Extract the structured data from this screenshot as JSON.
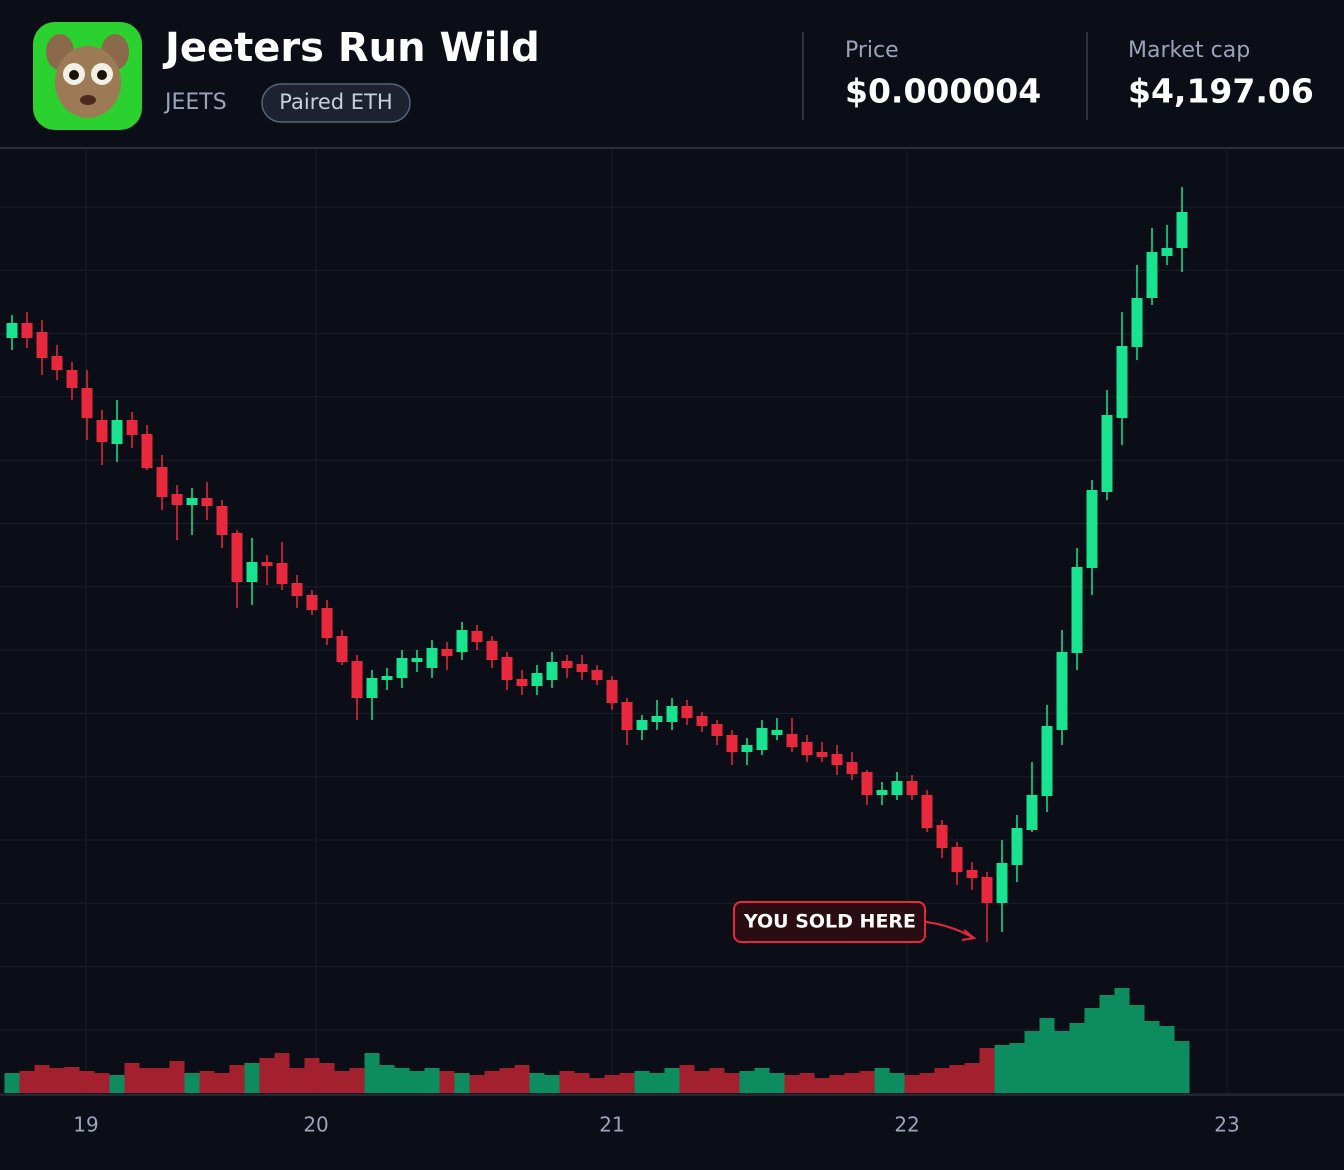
{
  "header": {
    "title": "Jeeters Run Wild",
    "ticker": "JEETS",
    "badge": "Paired ETH",
    "stats": [
      {
        "label": "Price",
        "value": "$0.000004"
      },
      {
        "label": "Market cap",
        "value": "$4,197.06"
      }
    ]
  },
  "chart_data": {
    "type": "candlestick",
    "annotation": "YOU SOLD HERE",
    "up_color": "#19e38f",
    "down_color": "#e8283c",
    "volume_up_color": "#0d8c60",
    "volume_down_color": "#a3212f",
    "x": [
      0,
      1,
      2,
      3,
      4,
      5,
      6,
      7,
      8,
      9,
      10,
      11,
      12,
      13,
      14,
      15,
      16,
      17,
      18,
      19,
      20,
      21,
      22,
      23,
      24,
      25,
      26,
      27,
      28,
      29,
      30,
      31,
      32,
      33,
      34,
      35,
      36,
      37,
      38,
      39,
      40,
      41,
      42,
      43,
      44,
      45,
      46,
      47,
      48,
      49,
      50,
      51,
      52,
      53,
      54,
      55,
      56,
      57,
      58,
      59,
      60,
      61,
      62,
      63,
      64,
      65,
      66,
      67,
      68,
      69,
      70,
      71,
      72,
      73,
      74,
      75,
      76,
      77,
      78
    ],
    "open": [
      662,
      677,
      668,
      644,
      630,
      612,
      580,
      556,
      580,
      566,
      533,
      506,
      495,
      502,
      494,
      467,
      418,
      438,
      437,
      417,
      405,
      392,
      364,
      339,
      302,
      320,
      322,
      338,
      332,
      351,
      348,
      369,
      359,
      343,
      321,
      314,
      320,
      339,
      336,
      330,
      320,
      298,
      270,
      278,
      278,
      294,
      284,
      276,
      265,
      248,
      250,
      265,
      266,
      258,
      248,
      246,
      238,
      228,
      205,
      205,
      219,
      205,
      175,
      153,
      130,
      123,
      97,
      135,
      170,
      204,
      270,
      347,
      432,
      508,
      582,
      653,
      702,
      744,
      752
    ],
    "high": [
      685,
      688,
      680,
      655,
      638,
      630,
      590,
      600,
      588,
      575,
      545,
      515,
      512,
      518,
      500,
      470,
      462,
      445,
      458,
      425,
      410,
      400,
      370,
      345,
      330,
      332,
      350,
      350,
      360,
      358,
      378,
      375,
      364,
      348,
      330,
      335,
      348,
      345,
      345,
      335,
      324,
      302,
      285,
      300,
      302,
      300,
      288,
      280,
      270,
      262,
      280,
      282,
      282,
      265,
      258,
      255,
      248,
      230,
      218,
      228,
      225,
      210,
      180,
      158,
      138,
      128,
      160,
      185,
      238,
      295,
      370,
      452,
      520,
      610,
      688,
      735,
      772,
      775,
      813
    ],
    "low": [
      650,
      652,
      625,
      620,
      600,
      560,
      535,
      538,
      552,
      530,
      490,
      460,
      465,
      480,
      452,
      392,
      395,
      415,
      410,
      392,
      385,
      355,
      335,
      280,
      280,
      310,
      312,
      328,
      322,
      330,
      340,
      350,
      332,
      310,
      305,
      305,
      312,
      322,
      320,
      315,
      290,
      255,
      260,
      270,
      270,
      275,
      268,
      255,
      235,
      235,
      245,
      260,
      248,
      238,
      238,
      225,
      220,
      195,
      195,
      200,
      200,
      168,
      142,
      115,
      110,
      58,
      68,
      118,
      168,
      188,
      255,
      330,
      405,
      500,
      555,
      640,
      695,
      735,
      728
    ],
    "close": [
      677,
      662,
      642,
      630,
      612,
      582,
      558,
      580,
      565,
      532,
      503,
      495,
      502,
      494,
      465,
      418,
      438,
      434,
      416,
      404,
      390,
      362,
      338,
      302,
      322,
      324,
      342,
      342,
      352,
      344,
      370,
      358,
      340,
      320,
      314,
      327,
      338,
      332,
      328,
      320,
      297,
      270,
      280,
      284,
      294,
      282,
      274,
      264,
      248,
      255,
      272,
      270,
      253,
      245,
      243,
      235,
      226,
      205,
      210,
      219,
      205,
      172,
      152,
      128,
      122,
      97,
      137,
      172,
      205,
      274,
      348,
      433,
      510,
      585,
      654,
      702,
      748,
      752,
      788
    ],
    "volume": [
      20,
      22,
      28,
      25,
      26,
      22,
      20,
      18,
      30,
      25,
      25,
      32,
      20,
      22,
      20,
      28,
      30,
      35,
      40,
      25,
      35,
      30,
      22,
      25,
      40,
      28,
      25,
      22,
      25,
      22,
      20,
      18,
      22,
      25,
      28,
      20,
      18,
      22,
      20,
      15,
      18,
      20,
      22,
      20,
      25,
      28,
      22,
      25,
      20,
      22,
      25,
      20,
      18,
      20,
      15,
      18,
      20,
      22,
      25,
      20,
      18,
      20,
      25,
      28,
      30,
      45,
      48,
      50,
      62,
      75,
      62,
      70,
      85,
      98,
      105,
      88,
      72,
      67,
      52
    ],
    "xlim": [
      -0.8,
      88.8
    ],
    "ylim": [
      50,
      850
    ],
    "volume_ylim": [
      0,
      120
    ],
    "xticks": [
      {
        "value": 4.93,
        "label": "19"
      },
      {
        "value": 20.27,
        "label": "20"
      },
      {
        "value": 40,
        "label": "21"
      },
      {
        "value": 59.67,
        "label": "22"
      },
      {
        "value": 81,
        "label": "23"
      }
    ],
    "grid": true
  }
}
